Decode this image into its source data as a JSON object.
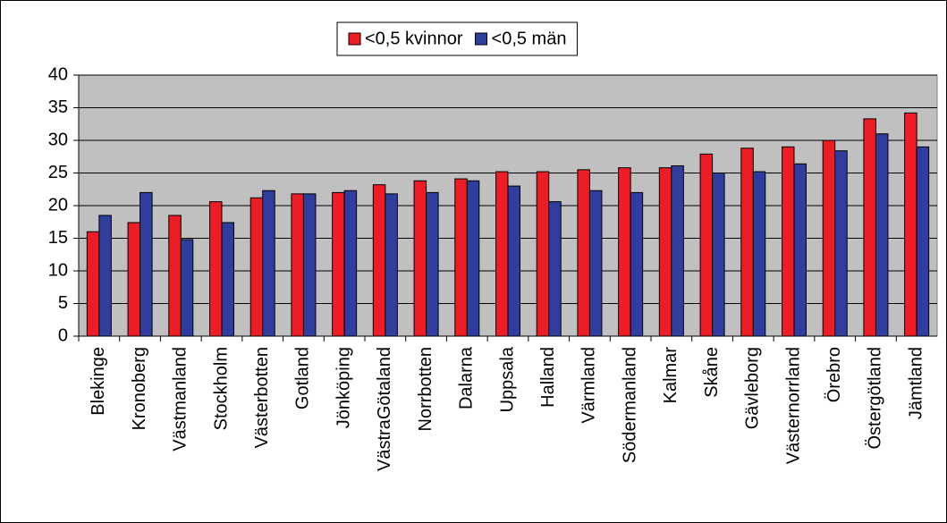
{
  "chart_data": {
    "type": "bar",
    "categories": [
      "Blekinge",
      "Kronoberg",
      "Västmanland",
      "Stockholm",
      "Västerbotten",
      "Gotland",
      "Jönköping",
      "VästraGötaland",
      "Norrbotten",
      "Dalarna",
      "Uppsala",
      "Halland",
      "Värmland",
      "Södermanland",
      "Kalmar",
      "Skåne",
      "Gävleborg",
      "Västernorrland",
      "Örebro",
      "Östergötland",
      "Jämtland"
    ],
    "series": [
      {
        "name": "<0,5 kvinnor",
        "color": "#ee1c25",
        "values": [
          16,
          17.4,
          18.5,
          20.6,
          21.2,
          21.8,
          22,
          23.2,
          23.8,
          24.1,
          25.2,
          25.2,
          25.5,
          25.8,
          25.8,
          27.9,
          28.8,
          29,
          30,
          33.3,
          34.2
        ]
      },
      {
        "name": "<0,5 män",
        "color": "#2e3d9e",
        "values": [
          18.5,
          22,
          14.8,
          17.4,
          22.3,
          21.8,
          22.3,
          21.8,
          22,
          23.8,
          23,
          20.6,
          22.3,
          22,
          26.1,
          25,
          25.2,
          26.4,
          28.4,
          31,
          29
        ]
      }
    ],
    "ylim": [
      0,
      40
    ],
    "yticks": [
      0,
      5,
      10,
      15,
      20,
      25,
      30,
      35,
      40
    ],
    "grid": true,
    "legend": "top",
    "plot_background": "#c0c0c0"
  }
}
